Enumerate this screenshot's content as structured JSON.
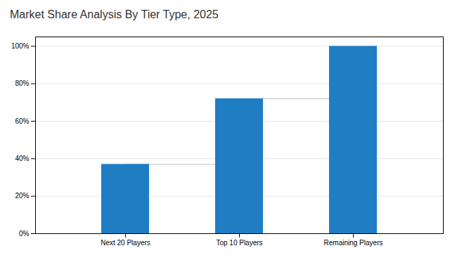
{
  "chart_data": {
    "type": "bar",
    "title": "Market Share Analysis By Tier Type, 2025",
    "categories": [
      "Next 20 Players",
      "Top 10 Players",
      "Remaining Players"
    ],
    "values": [
      37,
      72,
      100
    ],
    "color": "#1F7DC4",
    "ylim": [
      0,
      105
    ],
    "yticks": [
      {
        "value": 0,
        "label": "0%"
      },
      {
        "value": 20,
        "label": "20%"
      },
      {
        "value": 40,
        "label": "40%"
      },
      {
        "value": 60,
        "label": "60%"
      },
      {
        "value": 80,
        "label": "80%"
      },
      {
        "value": 100,
        "label": "100%"
      }
    ],
    "grid": true
  }
}
